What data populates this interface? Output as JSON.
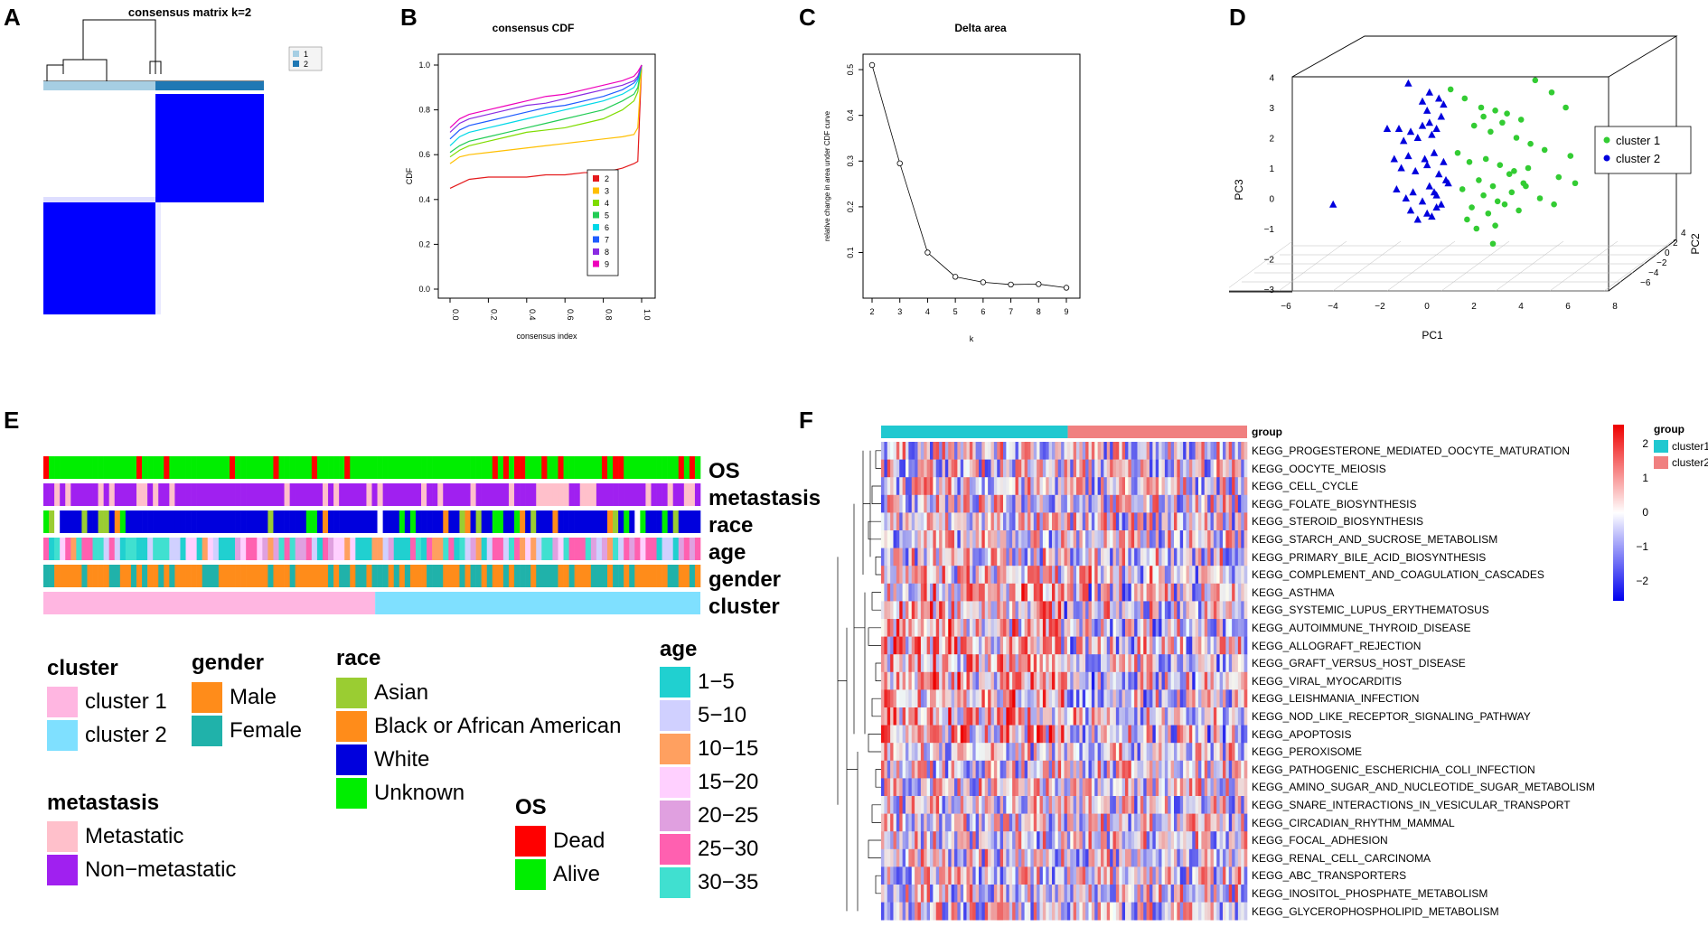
{
  "panels": {
    "A": "A",
    "B": "B",
    "C": "C",
    "D": "D",
    "E": "E",
    "F": "F"
  },
  "colors": {
    "consensus_blue": "#0000ff",
    "cluster1_light": "#a6cee3",
    "cluster2_dark": "#1f78b4",
    "cluster1_pink": "#ffb6e1",
    "cluster2_cyan": "#7fe0ff",
    "male": "#ff8c1a",
    "female": "#20b2aa",
    "asian": "#9acd32",
    "black": "#ff8c1a",
    "white": "#0000dd",
    "unknown": "#00ee00",
    "metastatic": "#ffc0cb",
    "non_metastatic": "#a020f0",
    "dead": "#ff0000",
    "alive": "#00ee00",
    "age": [
      "#20d0d0",
      "#d0d0ff",
      "#ffa060",
      "#ffd0ff",
      "#e0a0e0",
      "#ff60b0",
      "#40e0d0"
    ],
    "group_cluster1": "#20c8d0",
    "group_cluster2": "#f08080",
    "pca_cluster1": "#33cc33",
    "pca_cluster2": "#0000dd"
  },
  "chart_data": [
    {
      "id": "A",
      "type": "heatmap",
      "title": "consensus matrix k=2",
      "legend": [
        "1",
        "2"
      ],
      "blocks": [
        {
          "rows": "cluster 2",
          "cols": "cluster 2",
          "value": 1
        },
        {
          "rows": "cluster 1",
          "cols": "cluster 1",
          "value": 1
        }
      ]
    },
    {
      "id": "B",
      "type": "line",
      "title": "consensus CDF",
      "xlabel": "consensus index",
      "ylabel": "CDF",
      "xlim": [
        0,
        1
      ],
      "ylim": [
        0,
        1
      ],
      "xticks": [
        "0.0",
        "0.2",
        "0.4",
        "0.6",
        "0.8",
        "1.0"
      ],
      "yticks": [
        "0.0",
        "0.2",
        "0.4",
        "0.6",
        "0.8",
        "1.0"
      ],
      "series": [
        {
          "name": "2",
          "color": "#e41a1c",
          "x": [
            0,
            0.05,
            0.1,
            0.2,
            0.3,
            0.4,
            0.5,
            0.6,
            0.7,
            0.8,
            0.9,
            0.96,
            0.98,
            1.0
          ],
          "values": [
            0.45,
            0.47,
            0.49,
            0.5,
            0.5,
            0.5,
            0.51,
            0.51,
            0.52,
            0.52,
            0.54,
            0.56,
            0.57,
            1.0
          ]
        },
        {
          "name": "3",
          "color": "#ffbf00",
          "x": [
            0,
            0.05,
            0.1,
            0.2,
            0.3,
            0.4,
            0.5,
            0.6,
            0.7,
            0.8,
            0.9,
            0.96,
            0.98,
            1.0
          ],
          "values": [
            0.56,
            0.59,
            0.6,
            0.61,
            0.62,
            0.63,
            0.64,
            0.65,
            0.66,
            0.67,
            0.68,
            0.69,
            0.72,
            1.0
          ]
        },
        {
          "name": "4",
          "color": "#7fdc00",
          "x": [
            0,
            0.05,
            0.1,
            0.2,
            0.3,
            0.4,
            0.5,
            0.6,
            0.7,
            0.8,
            0.9,
            0.96,
            0.98,
            1.0
          ],
          "values": [
            0.59,
            0.62,
            0.64,
            0.66,
            0.68,
            0.7,
            0.71,
            0.72,
            0.74,
            0.76,
            0.8,
            0.84,
            0.88,
            1.0
          ]
        },
        {
          "name": "5",
          "color": "#22cc55",
          "x": [
            0,
            0.05,
            0.1,
            0.2,
            0.3,
            0.4,
            0.5,
            0.6,
            0.7,
            0.8,
            0.9,
            0.96,
            0.98,
            1.0
          ],
          "values": [
            0.61,
            0.64,
            0.66,
            0.68,
            0.7,
            0.72,
            0.74,
            0.76,
            0.78,
            0.8,
            0.84,
            0.87,
            0.9,
            1.0
          ]
        },
        {
          "name": "6",
          "color": "#00d8e8",
          "x": [
            0,
            0.05,
            0.1,
            0.2,
            0.3,
            0.4,
            0.5,
            0.6,
            0.7,
            0.8,
            0.9,
            0.96,
            0.98,
            1.0
          ],
          "values": [
            0.64,
            0.68,
            0.7,
            0.72,
            0.74,
            0.76,
            0.78,
            0.8,
            0.82,
            0.84,
            0.87,
            0.9,
            0.93,
            1.0
          ]
        },
        {
          "name": "7",
          "color": "#1f5cff",
          "x": [
            0,
            0.05,
            0.1,
            0.2,
            0.3,
            0.4,
            0.5,
            0.6,
            0.7,
            0.8,
            0.9,
            0.96,
            0.98,
            1.0
          ],
          "values": [
            0.67,
            0.71,
            0.73,
            0.75,
            0.77,
            0.79,
            0.81,
            0.82,
            0.84,
            0.86,
            0.89,
            0.92,
            0.94,
            1.0
          ]
        },
        {
          "name": "8",
          "color": "#8a2be2",
          "x": [
            0,
            0.05,
            0.1,
            0.2,
            0.3,
            0.4,
            0.5,
            0.6,
            0.7,
            0.8,
            0.9,
            0.96,
            0.98,
            1.0
          ],
          "values": [
            0.7,
            0.74,
            0.76,
            0.78,
            0.8,
            0.82,
            0.83,
            0.85,
            0.87,
            0.89,
            0.91,
            0.93,
            0.95,
            1.0
          ]
        },
        {
          "name": "9",
          "color": "#ee00bb",
          "x": [
            0,
            0.05,
            0.1,
            0.2,
            0.3,
            0.4,
            0.5,
            0.6,
            0.7,
            0.8,
            0.9,
            0.96,
            0.98,
            1.0
          ],
          "values": [
            0.72,
            0.76,
            0.78,
            0.8,
            0.82,
            0.84,
            0.86,
            0.87,
            0.89,
            0.91,
            0.93,
            0.95,
            0.97,
            1.0
          ]
        }
      ]
    },
    {
      "id": "C",
      "type": "line",
      "title": "Delta area",
      "xlabel": "k",
      "ylabel": "relative change in area under CDF curve",
      "x": [
        2,
        3,
        4,
        5,
        6,
        7,
        8,
        9
      ],
      "values": [
        0.51,
        0.295,
        0.1,
        0.047,
        0.035,
        0.03,
        0.031,
        0.023
      ],
      "xlim": [
        2,
        9
      ],
      "ylim": [
        0.02,
        0.52
      ],
      "yticks": [
        "0.1",
        "0.2",
        "0.3",
        "0.4",
        "0.5"
      ],
      "xticks": [
        "2",
        "3",
        "4",
        "5",
        "6",
        "7",
        "8",
        "9"
      ]
    },
    {
      "id": "D",
      "type": "scatter",
      "xlabel": "PC1",
      "ylabel": "PC3",
      "zlabel": "PC2",
      "xticks": [
        "−6",
        "−4",
        "−2",
        "0",
        "2",
        "4",
        "6",
        "8"
      ],
      "yticks": [
        "−3",
        "−2",
        "−1",
        "0",
        "1",
        "2",
        "3",
        "4"
      ],
      "zticks": [
        "−6",
        "−4",
        "−2",
        "0",
        "2",
        "4"
      ],
      "legend": [
        "cluster 1",
        "cluster 2"
      ],
      "series": [
        {
          "name": "cluster 1",
          "marker": "circle",
          "x": [
            1.2,
            1.8,
            2.5,
            3.1,
            3.6,
            4.2,
            4.8,
            5.5,
            6.1,
            2.2,
            2.9,
            3.4,
            4.0,
            4.6,
            5.2,
            1.5,
            2.0,
            2.7,
            3.3,
            3.9,
            4.5,
            5.8,
            2.4,
            3.0,
            3.7,
            4.3,
            1.7,
            2.6,
            3.2,
            3.8,
            5.0,
            6.5,
            2.1,
            2.8,
            3.5,
            4.1,
            1.9,
            2.3,
            3.0,
            4.4,
            5.6,
            6.3,
            2.6,
            3.1
          ],
          "y": [
            3.6,
            3.3,
            3.0,
            2.9,
            2.8,
            2.6,
            3.9,
            3.5,
            3.0,
            2.4,
            2.2,
            2.5,
            2.0,
            1.8,
            1.6,
            1.5,
            1.2,
            1.3,
            1.1,
            0.9,
            1.0,
            0.7,
            0.6,
            0.4,
            0.8,
            0.5,
            0.3,
            0.1,
            -0.1,
            0.2,
            0.0,
            0.5,
            -0.3,
            -0.5,
            -0.2,
            -0.4,
            -0.7,
            -1.0,
            -1.5,
            0.4,
            -0.2,
            1.4,
            2.7,
            -0.9
          ]
        },
        {
          "name": "cluster 2",
          "marker": "triangle",
          "x": [
            -1.5,
            -1.0,
            -0.5,
            0.0,
            0.3,
            0.6,
            -0.8,
            -0.2,
            0.4,
            0.8,
            -1.2,
            -0.6,
            0.1,
            0.5,
            0.9,
            -0.9,
            -0.3,
            0.2,
            0.7,
            1.0,
            -1.1,
            -0.4,
            0.3,
            0.6,
            -0.7,
            0.0,
            0.5,
            0.8,
            -0.5,
            0.2,
            0.6,
            1.1,
            -0.2,
            0.4,
            -3.8,
            0.0,
            0.3,
            0.7,
            -0.6,
            0.2,
            0.9
          ],
          "y": [
            2.3,
            2.3,
            2.2,
            2.4,
            2.5,
            2.3,
            1.9,
            2.0,
            2.1,
            2.7,
            1.3,
            1.4,
            1.3,
            1.5,
            1.2,
            1.0,
            0.9,
            1.1,
            0.8,
            0.6,
            0.3,
            0.2,
            0.4,
            0.1,
            0.0,
            -0.1,
            0.2,
            -0.2,
            -0.4,
            -0.5,
            -0.3,
            0.5,
            -0.7,
            -0.6,
            -0.2,
            3.2,
            3.5,
            3.3,
            3.8,
            2.9,
            3.1
          ]
        }
      ]
    },
    {
      "id": "F",
      "type": "heatmap",
      "color_scale": {
        "min": -2,
        "max": 2,
        "ticks": [
          "2",
          "1",
          "0",
          "−1",
          "−2"
        ],
        "low": "#0000ee",
        "mid": "#ffffff",
        "high": "#ee0000"
      },
      "group_label": "group",
      "group_legend": [
        "cluster1",
        "cluster2"
      ],
      "rows": [
        "KEGG_PROGESTERONE_MEDIATED_OOCYTE_MATURATION",
        "KEGG_OOCYTE_MEIOSIS",
        "KEGG_CELL_CYCLE",
        "KEGG_FOLATE_BIOSYNTHESIS",
        "KEGG_STEROID_BIOSYNTHESIS",
        "KEGG_STARCH_AND_SUCROSE_METABOLISM",
        "KEGG_PRIMARY_BILE_ACID_BIOSYNTHESIS",
        "KEGG_COMPLEMENT_AND_COAGULATION_CASCADES",
        "KEGG_ASTHMA",
        "KEGG_SYSTEMIC_LUPUS_ERYTHEMATOSUS",
        "KEGG_AUTOIMMUNE_THYROID_DISEASE",
        "KEGG_ALLOGRAFT_REJECTION",
        "KEGG_GRAFT_VERSUS_HOST_DISEASE",
        "KEGG_VIRAL_MYOCARDITIS",
        "KEGG_LEISHMANIA_INFECTION",
        "KEGG_NOD_LIKE_RECEPTOR_SIGNALING_PATHWAY",
        "KEGG_APOPTOSIS",
        "KEGG_PEROXISOME",
        "KEGG_PATHOGENIC_ESCHERICHIA_COLI_INFECTION",
        "KEGG_AMINO_SUGAR_AND_NUCLEOTIDE_SUGAR_METABOLISM",
        "KEGG_SNARE_INTERACTIONS_IN_VESICULAR_TRANSPORT",
        "KEGG_CIRCADIAN_RHYTHM_MAMMAL",
        "KEGG_FOCAL_ADHESION",
        "KEGG_RENAL_CELL_CARCINOMA",
        "KEGG_ABC_TRANSPORTERS",
        "KEGG_INOSITOL_PHOSPHATE_METABOLISM",
        "KEGG_GLYCEROPHOSPHOLIPID_METABOLISM"
      ]
    }
  ],
  "panelE": {
    "tracks": [
      "OS",
      "metastasis",
      "race",
      "age",
      "gender",
      "cluster"
    ],
    "legends": {
      "cluster": {
        "title": "cluster",
        "items": [
          "cluster 1",
          "cluster 2"
        ]
      },
      "gender": {
        "title": "gender",
        "items": [
          "Male",
          "Female"
        ]
      },
      "race": {
        "title": "race",
        "items": [
          "Asian",
          "Black or African American",
          "White",
          "Unknown"
        ]
      },
      "age": {
        "title": "age",
        "items": [
          "1−5",
          "5−10",
          "10−15",
          "15−20",
          "20−25",
          "25−30",
          "30−35"
        ]
      },
      "metastasis": {
        "title": "metastasis",
        "items": [
          "Metastatic",
          "Non−metastatic"
        ]
      },
      "os": {
        "title": "OS",
        "items": [
          "Dead",
          "Alive"
        ]
      }
    }
  }
}
